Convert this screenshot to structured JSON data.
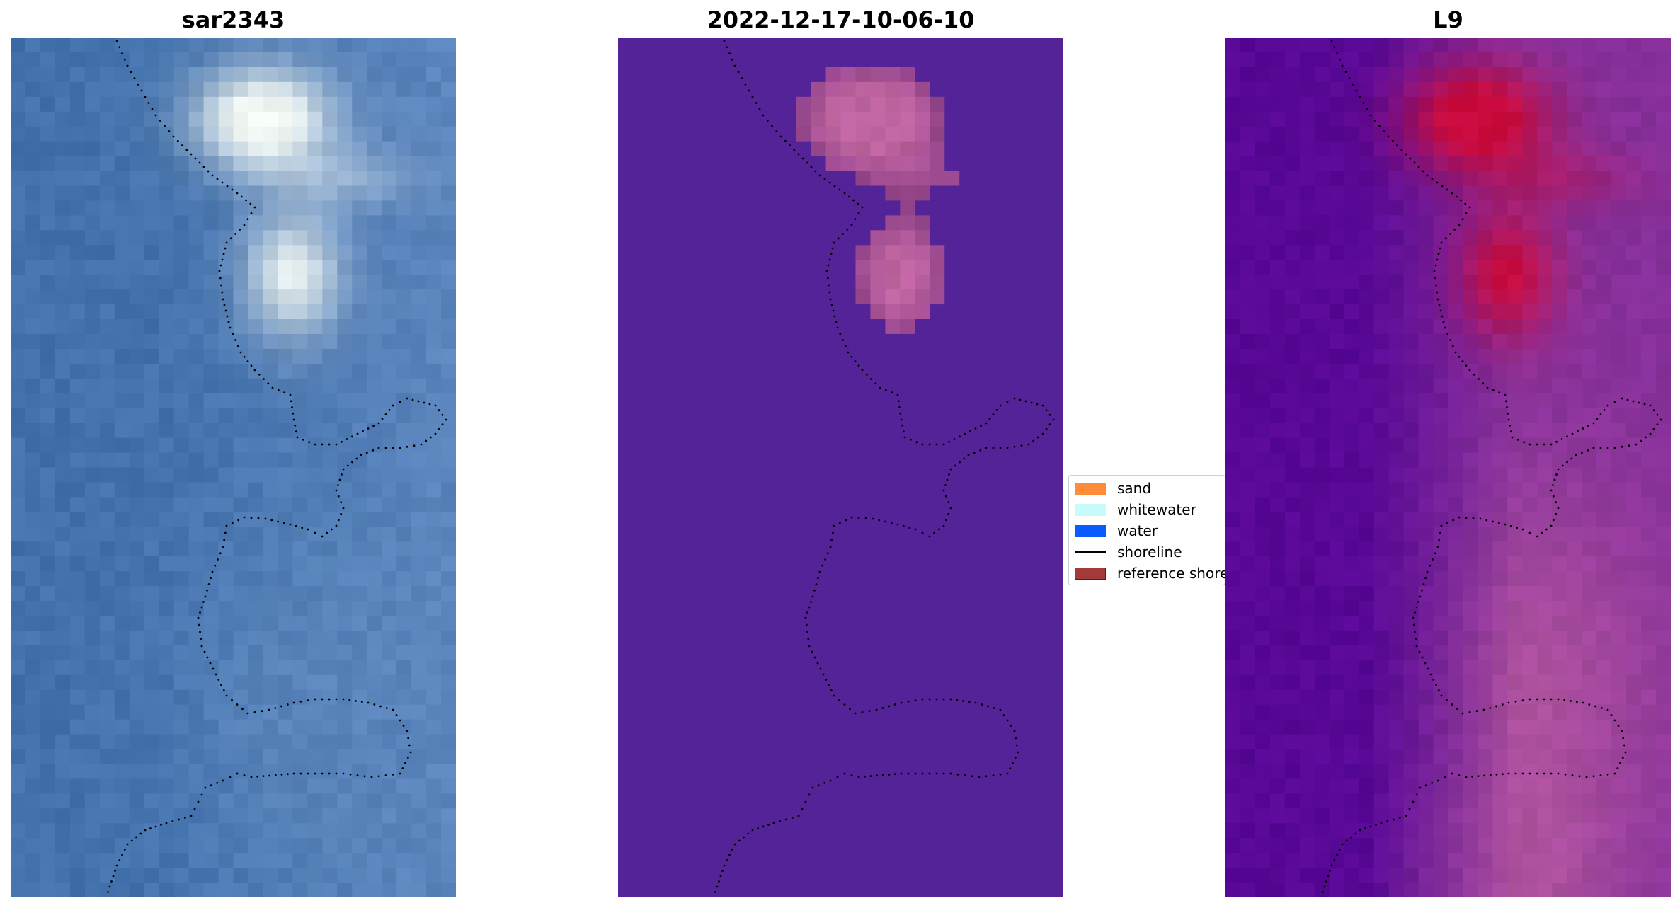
{
  "panels": [
    {
      "id": "rgb",
      "title": "sar2343"
    },
    {
      "id": "class",
      "title": "2022-12-17-10-06-10"
    },
    {
      "id": "index",
      "title": "L9"
    }
  ],
  "legend": {
    "items": [
      {
        "label": "sand",
        "kind": "patch",
        "color": "#ff8c3a"
      },
      {
        "label": "whitewater",
        "kind": "patch",
        "color": "#c8fcfc"
      },
      {
        "label": "water",
        "kind": "patch",
        "color": "#0a5cff"
      },
      {
        "label": "shoreline",
        "kind": "line",
        "color": "#000000"
      },
      {
        "label": "reference shoreline",
        "kind": "patch",
        "color": "#a33a3a"
      }
    ]
  },
  "colors": {
    "background": "#ffffff",
    "rgb_water": "#4a77b0",
    "rgb_whitewater": "#eef5f2",
    "class_water": "#532397",
    "class_white": "#b0629c",
    "index_low": "#5a0a9c",
    "index_high": "#c8063a"
  }
}
